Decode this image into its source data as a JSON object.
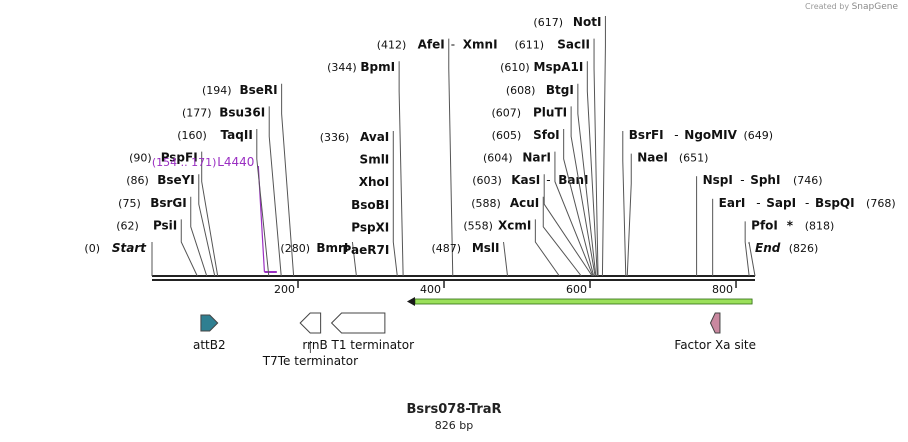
{
  "credit": {
    "prefix": "Created by",
    "brand": "SnapGene"
  },
  "plasmid": {
    "name": "Bsrs078-TraR",
    "length_label": "826 bp",
    "length": 826
  },
  "axis": {
    "ticks": [
      200,
      400,
      600,
      800
    ]
  },
  "sites": [
    {
      "pos": 0,
      "pos_label": "(0)",
      "name": "Start",
      "type": "endpoint"
    },
    {
      "pos": 62,
      "pos_label": "(62)",
      "name": "PsiI",
      "type": "enzyme"
    },
    {
      "pos": 75,
      "pos_label": "(75)",
      "name": "BsrGI",
      "type": "enzyme"
    },
    {
      "pos": 86,
      "pos_label": "(86)",
      "name": "BseYI",
      "type": "enzyme"
    },
    {
      "pos": 90,
      "pos_label": "(90)",
      "name": "PspFI",
      "type": "enzyme"
    },
    {
      "pos": 154,
      "end": 171,
      "pos_label": "(154 .. 171)",
      "name": "L4440",
      "type": "primer"
    },
    {
      "pos": 160,
      "pos_label": "(160)",
      "name": "TaqII",
      "type": "enzyme"
    },
    {
      "pos": 177,
      "pos_label": "(177)",
      "name": "Bsu36I",
      "type": "enzyme"
    },
    {
      "pos": 194,
      "pos_label": "(194)",
      "name": "BseRI",
      "type": "enzyme"
    },
    {
      "pos": 280,
      "pos_label": "(280)",
      "name": "BmrI",
      "type": "enzyme"
    },
    {
      "pos": 336,
      "pos_label": "(336)",
      "names": [
        "AvaI",
        "SmlI",
        "XhoI",
        "BsoBI",
        "PspXI",
        "PaeR7I"
      ],
      "type": "enzyme-group"
    },
    {
      "pos": 344,
      "pos_label": "(344)",
      "name": "BpmI",
      "type": "enzyme"
    },
    {
      "pos": 412,
      "pos_label": "(412)",
      "name": "AfeI",
      "name2": "XmnI",
      "type": "enzyme"
    },
    {
      "pos": 487,
      "pos_label": "(487)",
      "name": "MslI",
      "type": "enzyme"
    },
    {
      "pos": 558,
      "pos_label": "(558)",
      "name": "XcmI",
      "type": "enzyme"
    },
    {
      "pos": 588,
      "pos_label": "(588)",
      "name": "AcuI",
      "type": "enzyme"
    },
    {
      "pos": 603,
      "pos_label": "(603)",
      "name": "KasI",
      "name2": "BanI",
      "type": "enzyme"
    },
    {
      "pos": 604,
      "pos_label": "(604)",
      "name": "NarI",
      "type": "enzyme"
    },
    {
      "pos": 605,
      "pos_label": "(605)",
      "name": "SfoI",
      "type": "enzyme"
    },
    {
      "pos": 607,
      "pos_label": "(607)",
      "name": "PluTI",
      "type": "enzyme"
    },
    {
      "pos": 608,
      "pos_label": "(608)",
      "name": "BtgI",
      "type": "enzyme"
    },
    {
      "pos": 610,
      "pos_label": "(610)",
      "name": "MspA1I",
      "type": "enzyme"
    },
    {
      "pos": 611,
      "pos_label": "(611)",
      "name": "SacII",
      "type": "enzyme"
    },
    {
      "pos": 617,
      "pos_label": "(617)",
      "name": "NotI",
      "type": "enzyme"
    },
    {
      "pos": 649,
      "pos_label": "(649)",
      "name": "BsrFI",
      "name2": "NgoMIV",
      "type": "enzyme"
    },
    {
      "pos": 651,
      "pos_label": "(651)",
      "name": "NaeI",
      "type": "enzyme"
    },
    {
      "pos": 746,
      "pos_label": "(746)",
      "name": "NspI",
      "name2": "SphI",
      "type": "enzyme"
    },
    {
      "pos": 768,
      "pos_label": "(768)",
      "name": "EarI",
      "name2": "SapI",
      "name3": "BspQI",
      "type": "enzyme"
    },
    {
      "pos": 818,
      "pos_label": "(818)",
      "name": "PfoI",
      "marker": "*",
      "type": "enzyme"
    },
    {
      "pos": 826,
      "pos_label": "(826)",
      "name": "End",
      "type": "endpoint"
    }
  ],
  "features": [
    {
      "name": "attB2",
      "start": 67,
      "end": 90,
      "direction": "forward",
      "color": "#2f7f91",
      "label_pos": "below"
    },
    {
      "name": "T7Te terminator",
      "start": 203,
      "end": 231,
      "direction": "reverse",
      "color": "#ffffff",
      "label_pos": "below-far"
    },
    {
      "name": "rrnB T1 terminator",
      "start": 246,
      "end": 319,
      "direction": "reverse",
      "color": "#ffffff",
      "label_pos": "below"
    },
    {
      "name": "Factor Xa site",
      "start": 765,
      "end": 778,
      "direction": "reverse",
      "color": "#c9889f",
      "label_pos": "below"
    }
  ],
  "orf": {
    "start": 352,
    "end": 822,
    "direction": "reverse",
    "color": "#9be05a"
  },
  "colors": {
    "primer": "#9a2fc2",
    "text": "#111111",
    "line": "#555555",
    "backbone": "#222222"
  }
}
